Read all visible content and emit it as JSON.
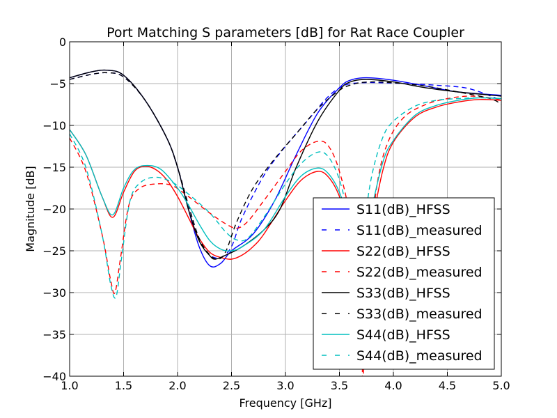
{
  "chart_data": {
    "type": "line",
    "title": "Port Matching S parameters [dB] for Rat Race Coupler",
    "xlabel": "Frequency [GHz]",
    "ylabel": "Magnitude [dB]",
    "xlim": [
      1.0,
      5.0
    ],
    "ylim": [
      -40,
      0
    ],
    "xticks": [
      1.0,
      1.5,
      2.0,
      2.5,
      3.0,
      3.5,
      4.0,
      4.5,
      5.0
    ],
    "xtick_labels": [
      "1.0",
      "1.5",
      "2.0",
      "2.5",
      "3.0",
      "3.5",
      "4.0",
      "4.5",
      "5.0"
    ],
    "yticks": [
      0,
      -5,
      -10,
      -15,
      -20,
      -25,
      -30,
      -35,
      -40
    ],
    "ytick_labels": [
      "0",
      "−5",
      "−10",
      "−15",
      "−20",
      "−25",
      "−30",
      "−35",
      "−40"
    ],
    "grid": true,
    "legend_position": "bottom-right",
    "series": [
      {
        "name": "S11(dB)_HFSS",
        "color": "#0000ff",
        "dash": "solid",
        "x": [
          1.0,
          1.2,
          1.35,
          1.5,
          1.7,
          1.9,
          2.0,
          2.1,
          2.2,
          2.3,
          2.4,
          2.5,
          2.7,
          2.9,
          3.1,
          3.3,
          3.5,
          3.6,
          3.75,
          4.0,
          4.3,
          4.6,
          5.0
        ],
        "y": [
          -4.3,
          -3.6,
          -3.4,
          -4.0,
          -7.0,
          -11.5,
          -15.0,
          -20.0,
          -24.5,
          -26.8,
          -26.5,
          -25.0,
          -23.0,
          -19.0,
          -13.5,
          -8.5,
          -5.5,
          -4.6,
          -4.3,
          -4.6,
          -5.3,
          -6.0,
          -6.4
        ]
      },
      {
        "name": "S11(dB)_measured",
        "color": "#0000ff",
        "dash": "dashed",
        "x": [
          1.0,
          1.2,
          1.35,
          1.5,
          1.7,
          1.9,
          2.0,
          2.1,
          2.2,
          2.3,
          2.4,
          2.5,
          2.6,
          2.8,
          3.0,
          3.2,
          3.4,
          3.55,
          3.7,
          3.9,
          4.1,
          4.4,
          4.7,
          5.0
        ],
        "y": [
          -4.5,
          -3.9,
          -3.7,
          -4.2,
          -7.0,
          -11.5,
          -15.0,
          -19.5,
          -23.5,
          -25.5,
          -25.8,
          -24.5,
          -21.0,
          -16.0,
          -12.5,
          -9.5,
          -6.5,
          -5.2,
          -4.9,
          -4.9,
          -5.0,
          -5.2,
          -5.6,
          -7.0
        ]
      },
      {
        "name": "S22(dB)_HFSS",
        "color": "#ff0000",
        "dash": "solid",
        "x": [
          1.0,
          1.15,
          1.3,
          1.4,
          1.5,
          1.6,
          1.7,
          1.8,
          1.9,
          2.0,
          2.1,
          2.2,
          2.3,
          2.4,
          2.5,
          2.6,
          2.7,
          2.8,
          3.0,
          3.15,
          3.3,
          3.4,
          3.5,
          3.6,
          3.7,
          3.8,
          3.9,
          4.0,
          4.2,
          4.4,
          4.6,
          4.8,
          5.0
        ],
        "y": [
          -10.5,
          -13.5,
          -18.5,
          -21.0,
          -18.0,
          -15.5,
          -14.9,
          -15.3,
          -16.5,
          -18.5,
          -21.0,
          -23.5,
          -25.2,
          -25.8,
          -26.0,
          -25.5,
          -24.5,
          -23.0,
          -19.0,
          -16.5,
          -15.5,
          -16.2,
          -18.5,
          -23.0,
          -30.0,
          -22.0,
          -15.5,
          -12.0,
          -9.0,
          -7.8,
          -7.2,
          -6.9,
          -7.0
        ]
      },
      {
        "name": "S22(dB)_measured",
        "color": "#ff0000",
        "dash": "dashed",
        "x": [
          1.0,
          1.15,
          1.3,
          1.38,
          1.42,
          1.47,
          1.55,
          1.65,
          1.8,
          1.95,
          2.1,
          2.3,
          2.45,
          2.55,
          2.65,
          2.8,
          3.0,
          3.15,
          3.3,
          3.4,
          3.5,
          3.6,
          3.7,
          3.72,
          3.78,
          3.85,
          3.95,
          4.1,
          4.3,
          4.5,
          4.7,
          4.9,
          5.0
        ],
        "y": [
          -11.5,
          -15.5,
          -23.0,
          -28.5,
          -30.0,
          -26.0,
          -19.5,
          -17.5,
          -17.0,
          -17.2,
          -18.5,
          -20.5,
          -21.8,
          -22.3,
          -21.5,
          -19.0,
          -15.5,
          -13.0,
          -11.9,
          -12.5,
          -15.5,
          -21.5,
          -34.5,
          -40.0,
          -26.0,
          -17.0,
          -12.0,
          -9.0,
          -7.5,
          -6.8,
          -6.5,
          -6.7,
          -7.0
        ]
      },
      {
        "name": "S33(dB)_HFSS",
        "color": "#000000",
        "dash": "solid",
        "x": [
          1.0,
          1.2,
          1.35,
          1.5,
          1.7,
          1.9,
          2.0,
          2.1,
          2.2,
          2.3,
          2.35,
          2.45,
          2.6,
          2.8,
          2.95,
          3.1,
          3.3,
          3.5,
          3.6,
          3.75,
          4.0,
          4.3,
          4.6,
          5.0
        ],
        "y": [
          -4.3,
          -3.6,
          -3.4,
          -4.0,
          -7.0,
          -11.5,
          -15.0,
          -20.0,
          -23.8,
          -25.6,
          -26.0,
          -25.5,
          -24.5,
          -22.5,
          -20.0,
          -15.0,
          -9.5,
          -5.8,
          -4.8,
          -4.5,
          -4.8,
          -5.5,
          -6.0,
          -6.5
        ]
      },
      {
        "name": "S33(dB)_measured",
        "color": "#000000",
        "dash": "dashed",
        "x": [
          1.0,
          1.2,
          1.35,
          1.5,
          1.7,
          1.9,
          2.0,
          2.1,
          2.2,
          2.3,
          2.38,
          2.45,
          2.55,
          2.7,
          2.9,
          3.1,
          3.3,
          3.5,
          3.65,
          3.8,
          4.0,
          4.3,
          4.6,
          4.9,
          5.0
        ],
        "y": [
          -4.5,
          -3.9,
          -3.7,
          -4.2,
          -7.0,
          -11.5,
          -15.0,
          -19.5,
          -23.5,
          -25.5,
          -26.0,
          -25.0,
          -21.5,
          -17.5,
          -14.0,
          -11.0,
          -8.0,
          -5.8,
          -5.0,
          -4.8,
          -4.9,
          -5.3,
          -6.0,
          -6.8,
          -7.5
        ]
      },
      {
        "name": "S44(dB)_HFSS",
        "color": "#00bfbf",
        "dash": "solid",
        "x": [
          1.0,
          1.15,
          1.3,
          1.4,
          1.5,
          1.6,
          1.72,
          1.85,
          2.0,
          2.1,
          2.2,
          2.3,
          2.4,
          2.5,
          2.6,
          2.8,
          3.0,
          3.15,
          3.3,
          3.4,
          3.5,
          3.6,
          3.68,
          3.78,
          3.9,
          4.0,
          4.2,
          4.4,
          4.6,
          4.8,
          5.0
        ],
        "y": [
          -10.5,
          -13.5,
          -18.5,
          -20.7,
          -17.5,
          -15.3,
          -14.8,
          -15.3,
          -17.5,
          -19.5,
          -21.8,
          -23.8,
          -24.8,
          -25.0,
          -24.5,
          -22.5,
          -18.5,
          -16.0,
          -15.1,
          -15.8,
          -18.0,
          -22.0,
          -26.5,
          -21.0,
          -14.5,
          -11.8,
          -8.8,
          -7.6,
          -7.0,
          -6.7,
          -6.8
        ]
      },
      {
        "name": "S44(dB)_measured",
        "color": "#00bfbf",
        "dash": "dashed",
        "x": [
          1.0,
          1.15,
          1.3,
          1.38,
          1.43,
          1.48,
          1.56,
          1.66,
          1.8,
          1.95,
          2.1,
          2.3,
          2.45,
          2.55,
          2.65,
          2.8,
          3.0,
          3.15,
          3.3,
          3.4,
          3.5,
          3.58,
          3.65,
          3.72,
          3.8,
          3.9,
          4.0,
          4.2,
          4.4,
          4.6,
          4.8,
          5.0
        ],
        "y": [
          -11.0,
          -15.0,
          -23.0,
          -29.0,
          -30.5,
          -26.0,
          -19.0,
          -16.8,
          -16.2,
          -16.8,
          -18.2,
          -20.5,
          -22.8,
          -23.7,
          -23.5,
          -21.0,
          -17.0,
          -14.5,
          -13.2,
          -13.8,
          -16.5,
          -21.0,
          -28.0,
          -22.5,
          -16.0,
          -11.5,
          -9.5,
          -7.7,
          -7.0,
          -6.8,
          -6.7,
          -6.8
        ]
      }
    ]
  }
}
